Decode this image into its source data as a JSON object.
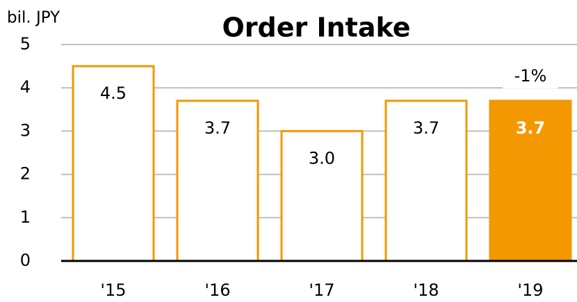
{
  "chart_data": {
    "type": "bar",
    "title": "Order Intake",
    "y_axis_label": "bil. JPY",
    "categories": [
      "'15",
      "'16",
      "'17",
      "'18",
      "'19"
    ],
    "values": [
      4.5,
      3.7,
      3.0,
      3.7,
      3.7
    ],
    "value_labels": [
      "4.5",
      "3.7",
      "3.0",
      "3.7",
      "3.7"
    ],
    "color": "#f39800",
    "fills": [
      "#ffffff",
      "#ffffff",
      "#ffffff",
      "#ffffff",
      "#f39800"
    ],
    "annotation": "-1%",
    "ylim": [
      0,
      5
    ],
    "yticks": [
      0,
      1,
      2,
      3,
      4,
      5
    ],
    "grid": true
  }
}
